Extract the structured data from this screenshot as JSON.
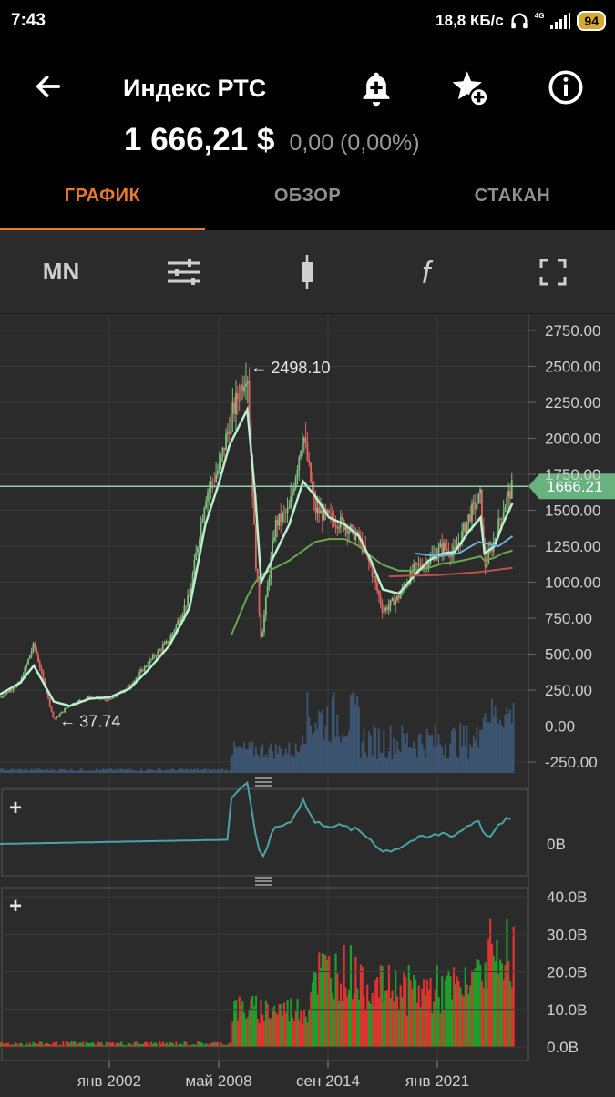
{
  "status_bar": {
    "time": "7:43",
    "net_speed": "18,8 КБ/с",
    "network": "4G",
    "battery": "94"
  },
  "header": {
    "title": "Индекс РТС",
    "price": "1 666,21 $",
    "change": "0,00 (0,00%)",
    "icons": [
      "back-arrow-icon",
      "bell-add-icon",
      "star-add-icon",
      "info-icon"
    ]
  },
  "tabs": [
    {
      "label": "ГРАФИК",
      "active": true
    },
    {
      "label": "ОБЗОР",
      "active": false
    },
    {
      "label": "СТАКАН",
      "active": false
    }
  ],
  "toolbar": {
    "period_label": "MN",
    "icons": [
      "settings-sliders-icon",
      "candlestick-icon",
      "function-icon",
      "fullscreen-icon"
    ]
  },
  "colors": {
    "accent": "#e8792f",
    "up": "#1f9e2b",
    "down": "#e0322f",
    "price_line": "#8fd1a6",
    "ma_fast": "#b9f0d0",
    "ma_slow": "#6aa84f",
    "ma_long": "#c0504d",
    "badge": "#67b27f"
  },
  "chart_data": [
    {
      "type": "line",
      "name": "main",
      "current_value_label": "1666.21",
      "annotations": [
        {
          "label": "2498.10",
          "x": "2008",
          "y": 2498.1
        },
        {
          "label": "37.74",
          "x": "1998",
          "y": 37.74
        }
      ],
      "y_ticks": [
        "2750.00",
        "2500.00",
        "2250.00",
        "2000.00",
        "1750.00",
        "1500.00",
        "1250.00",
        "1000.00",
        "750.00",
        "500.00",
        "250.00",
        "0.00",
        "-250.00"
      ],
      "ylim": [
        -250,
        2750
      ],
      "x": [
        1996.0,
        1997.0,
        1997.7,
        1998.7,
        1999.5,
        2000.5,
        2001.5,
        2002.5,
        2003.5,
        2004.5,
        2005.5,
        2006.3,
        2007.0,
        2007.5,
        2008.4,
        2008.8,
        2009.1,
        2009.8,
        2010.5,
        2011.2,
        2011.8,
        2012.5,
        2013.3,
        2014.0,
        2014.6,
        2015.2,
        2016.0,
        2016.8,
        2017.5,
        2018.2,
        2018.8,
        2019.5,
        2020.1,
        2020.3,
        2020.8,
        2021.2,
        2021.7
      ],
      "y": [
        200,
        300,
        570,
        40,
        150,
        200,
        180,
        280,
        450,
        600,
        900,
        1600,
        1800,
        2100,
        2498,
        1200,
        600,
        1400,
        1500,
        2050,
        1500,
        1450,
        1400,
        1300,
        1100,
        800,
        900,
        1100,
        1150,
        1250,
        1200,
        1450,
        1600,
        1100,
        1300,
        1500,
        1666
      ],
      "ma_fast_y": [
        220,
        300,
        420,
        170,
        140,
        190,
        200,
        260,
        400,
        560,
        820,
        1400,
        1700,
        1950,
        2200,
        1600,
        1000,
        1200,
        1400,
        1700,
        1600,
        1450,
        1400,
        1320,
        1150,
        950,
        920,
        1050,
        1150,
        1200,
        1210,
        1350,
        1450,
        1200,
        1250,
        1400,
        1550
      ],
      "ma_slow_y": [
        null,
        null,
        null,
        null,
        null,
        null,
        null,
        null,
        null,
        null,
        null,
        null,
        null,
        600,
        900,
        1000,
        1050,
        1100,
        1150,
        1220,
        1280,
        1300,
        1300,
        1250,
        1180,
        1120,
        1080,
        1080,
        1100,
        1130,
        1140,
        1160,
        1180,
        1150,
        1170,
        1200,
        1220
      ],
      "volume_bars_hint": "monthly volume bars on main panel"
    },
    {
      "type": "line",
      "name": "indicator-1",
      "y_ticks": [
        "0B"
      ]
    },
    {
      "type": "bar",
      "name": "volume",
      "y_ticks": [
        "40.0B",
        "30.0B",
        "20.0B",
        "10.0B",
        "0.0B"
      ],
      "ylim": [
        0,
        40
      ],
      "x_ticks": [
        "янв 2002",
        "май 2008",
        "сен 2014",
        "янв 2021"
      ]
    }
  ]
}
